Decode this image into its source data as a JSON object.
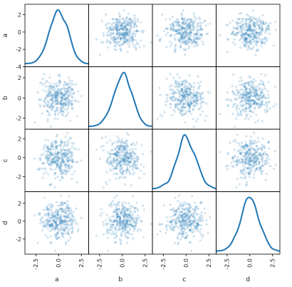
{
  "chart_data": {
    "type": "scatter",
    "variables": [
      "a",
      "b",
      "c",
      "d"
    ],
    "diagonal": "kde",
    "ticks_x": {
      "a": [
        "-2.5",
        "0.0",
        "2.5"
      ],
      "b": [
        "-2.5",
        "0.0",
        "2.5"
      ],
      "c": [
        "-2.5",
        "0.0",
        "2.5"
      ],
      "d": [
        "-2.5",
        "0.0",
        "2.5"
      ]
    },
    "ticks_y": {
      "a": [
        "-4",
        "-2",
        "0",
        "2"
      ],
      "b": [
        "-2",
        "0",
        "2"
      ],
      "c": [
        "-2",
        "0",
        "2"
      ],
      "d": [
        "-2",
        "0",
        "2"
      ]
    },
    "xrange": [
      -3.7,
      3.3
    ],
    "yrange": {
      "a": [
        -4.0,
        3.2
      ],
      "b": [
        -3.1,
        3.1
      ],
      "c": [
        -3.6,
        3.0
      ],
      "d": [
        -3.7,
        3.3
      ]
    },
    "point_color": "#1f77b4",
    "point_alpha": 0.2,
    "kde_color": "#1f77b4",
    "samples_per_variable": 1000,
    "distribution": "standard normal, independent"
  }
}
